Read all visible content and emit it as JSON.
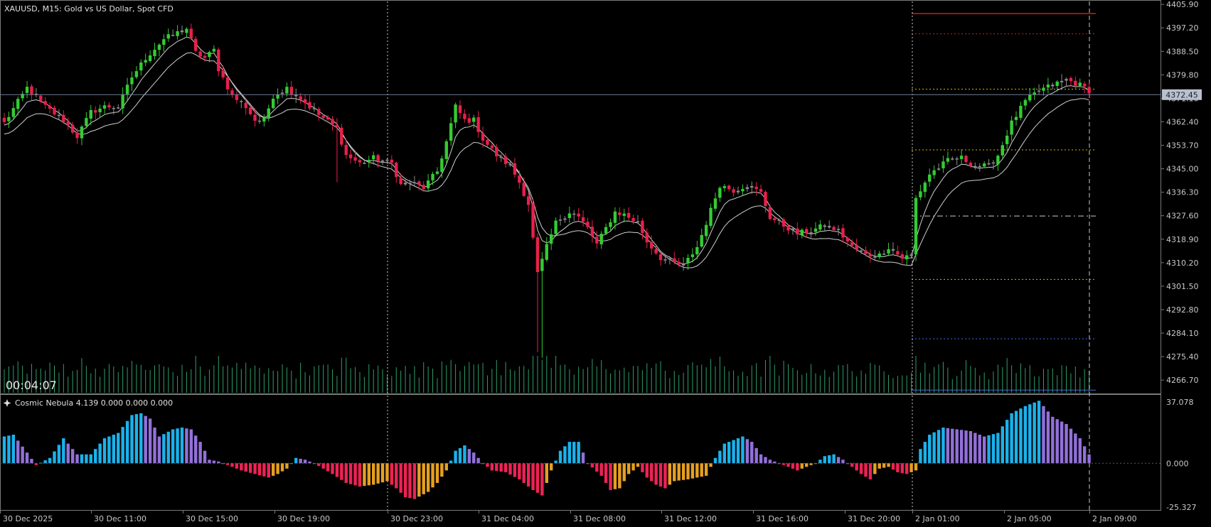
{
  "header": {
    "symbol_label": "XAUUSD, M15:  Gold vs US Dollar, Spot CFD"
  },
  "timer": "00:04:07",
  "indicator": {
    "label": "Cosmic Nebula 4.139 0.000 0.000 0.000",
    "icon": "sparkle-icon",
    "scale_ticks": [
      "37.078",
      "0.000",
      "-25.327"
    ],
    "top": 37.078,
    "bottom": -25.327,
    "colors": {
      "blue": "#1ab2ec",
      "purple": "#9370db",
      "red": "#ee2255",
      "orange": "#e6a020"
    }
  },
  "colors": {
    "bull": "#33cc33",
    "bear": "#e8204a",
    "doji": "#8c8c8c",
    "ma": "#cfcfcf",
    "volume": "#2e9e6a",
    "price_line": "#6f7d96",
    "price_label_bg": "#b9c1cf",
    "grid_vline": "#c8c8c8"
  },
  "chart_data": [
    {
      "type": "candlestick",
      "symbol": "XAUUSD",
      "timeframe": "M15",
      "ylim": [
        4262.0,
        4407.0
      ],
      "y_ticks": [
        "4405.90",
        "4397.20",
        "4388.50",
        "4379.80",
        "4371.10",
        "4362.40",
        "4353.70",
        "4345.00",
        "4336.30",
        "4327.60",
        "4318.90",
        "4310.20",
        "4301.50",
        "4292.80",
        "4284.10",
        "4275.40",
        "4266.70"
      ],
      "x_ticks": [
        "30 Dec 2025",
        "30 Dec 11:00",
        "30 Dec 15:00",
        "30 Dec 19:00",
        "30 Dec 23:00",
        "31 Dec 04:00",
        "31 Dec 08:00",
        "31 Dec 12:00",
        "31 Dec 16:00",
        "31 Dec 20:00",
        "2 Jan 01:00",
        "2 Jan 05:00",
        "2 Jan 09:00"
      ],
      "current_price": "4372.45",
      "session_lines": [
        "30 Dec 23:00",
        "2 Jan 01:00",
        "2 Jan 09:00"
      ],
      "anchors": [
        [
          0,
          4362
        ],
        [
          5,
          4375
        ],
        [
          9,
          4368
        ],
        [
          13,
          4363
        ],
        [
          16,
          4357
        ],
        [
          19,
          4366
        ],
        [
          22,
          4368
        ],
        [
          25,
          4368
        ],
        [
          28,
          4379
        ],
        [
          31,
          4386
        ],
        [
          35,
          4393
        ],
        [
          40,
          4397
        ],
        [
          42,
          4388
        ],
        [
          44,
          4386
        ],
        [
          46,
          4389
        ],
        [
          47,
          4382
        ],
        [
          50,
          4372
        ],
        [
          53,
          4368
        ],
        [
          55,
          4363
        ],
        [
          57,
          4363
        ],
        [
          59,
          4372
        ],
        [
          62,
          4375
        ],
        [
          65,
          4371
        ],
        [
          69,
          4365
        ],
        [
          73,
          4360
        ],
        [
          75,
          4350
        ],
        [
          78,
          4347
        ],
        [
          81,
          4349
        ],
        [
          85,
          4347
        ],
        [
          87,
          4339
        ],
        [
          89,
          4340
        ],
        [
          92,
          4338
        ],
        [
          95,
          4344
        ],
        [
          97,
          4355
        ],
        [
          99,
          4368
        ],
        [
          101,
          4363
        ],
        [
          103,
          4363
        ],
        [
          105,
          4356
        ],
        [
          108,
          4350
        ],
        [
          111,
          4346
        ],
        [
          113,
          4340
        ],
        [
          115,
          4332
        ],
        [
          117,
          4306
        ],
        [
          119,
          4316
        ],
        [
          121,
          4325
        ],
        [
          124,
          4329
        ],
        [
          126,
          4327
        ],
        [
          128,
          4323
        ],
        [
          130,
          4317
        ],
        [
          132,
          4323
        ],
        [
          134,
          4329
        ],
        [
          136,
          4328
        ],
        [
          139,
          4325
        ],
        [
          141,
          4318
        ],
        [
          144,
          4312
        ],
        [
          147,
          4310
        ],
        [
          149,
          4309
        ],
        [
          152,
          4316
        ],
        [
          154,
          4325
        ],
        [
          157,
          4339
        ],
        [
          160,
          4337
        ],
        [
          163,
          4339
        ],
        [
          166,
          4336
        ],
        [
          168,
          4327
        ],
        [
          171,
          4324
        ],
        [
          174,
          4321
        ],
        [
          177,
          4322
        ],
        [
          180,
          4324
        ],
        [
          183,
          4322
        ],
        [
          186,
          4316
        ],
        [
          189,
          4313
        ],
        [
          192,
          4313
        ],
        [
          194,
          4316
        ],
        [
          197,
          4312
        ],
        [
          199,
          4313
        ],
        [
          200,
          4334
        ],
        [
          203,
          4343
        ],
        [
          207,
          4348
        ],
        [
          210,
          4349
        ],
        [
          213,
          4346
        ],
        [
          216,
          4346
        ],
        [
          218,
          4350
        ],
        [
          221,
          4362
        ],
        [
          224,
          4370
        ],
        [
          227,
          4374
        ],
        [
          230,
          4376
        ],
        [
          233,
          4378
        ],
        [
          236,
          4376
        ],
        [
          238,
          4374
        ]
      ],
      "spike_wicks": [
        {
          "candle": 117,
          "low": 4277
        },
        {
          "candle": 118,
          "low": 4275
        },
        {
          "candle": 73,
          "low": 4340
        }
      ],
      "horizontal_levels": [
        {
          "price": 4402.5,
          "color": "#cc1d1d",
          "style": "solid",
          "width": 1.5
        },
        {
          "price": 4395.0,
          "color": "#cc1d1d",
          "style": "dotted",
          "width": 1
        },
        {
          "price": 4374.5,
          "color": "#d4b400",
          "style": "dotted",
          "width": 1
        },
        {
          "price": 4352.0,
          "color": "#d4b400",
          "style": "dotted",
          "width": 1
        },
        {
          "price": 4327.5,
          "color": "#c8c8c8",
          "style": "dashdot",
          "width": 1
        },
        {
          "price": 4304.0,
          "color": "#d4b400",
          "style": "dotted",
          "width": 1
        },
        {
          "price": 4282.0,
          "color": "#3a6ed8",
          "style": "dotted",
          "width": 1
        },
        {
          "price": 4263.0,
          "color": "#3a6ed8",
          "style": "solid",
          "width": 1
        }
      ]
    },
    {
      "type": "histogram",
      "name": "Cosmic Nebula 4.139",
      "ylim": [
        -25.327,
        37.078
      ],
      "y_ticks": [
        "37.078",
        "0.000",
        "-25.327"
      ],
      "anchors": [
        [
          0,
          15
        ],
        [
          2,
          16
        ],
        [
          5,
          6
        ],
        [
          7,
          -1
        ],
        [
          10,
          3
        ],
        [
          13,
          14
        ],
        [
          16,
          5
        ],
        [
          19,
          5
        ],
        [
          22,
          14
        ],
        [
          25,
          17
        ],
        [
          28,
          27
        ],
        [
          30,
          28
        ],
        [
          32,
          25
        ],
        [
          34,
          15
        ],
        [
          37,
          19
        ],
        [
          39,
          20
        ],
        [
          41,
          19
        ],
        [
          43,
          12
        ],
        [
          45,
          2
        ],
        [
          47,
          1
        ],
        [
          49,
          -1
        ],
        [
          52,
          -4
        ],
        [
          55,
          -6
        ],
        [
          58,
          -8
        ],
        [
          60,
          -6
        ],
        [
          62,
          -3
        ],
        [
          64,
          3
        ],
        [
          66,
          2
        ],
        [
          68,
          0
        ],
        [
          70,
          -3
        ],
        [
          72,
          -6
        ],
        [
          75,
          -11
        ],
        [
          78,
          -13
        ],
        [
          81,
          -12
        ],
        [
          84,
          -10
        ],
        [
          86,
          -14
        ],
        [
          88,
          -19
        ],
        [
          90,
          -20
        ],
        [
          93,
          -16
        ],
        [
          95,
          -11
        ],
        [
          97,
          -4
        ],
        [
          99,
          7
        ],
        [
          101,
          10
        ],
        [
          103,
          6
        ],
        [
          105,
          0
        ],
        [
          107,
          -4
        ],
        [
          110,
          -5
        ],
        [
          113,
          -9
        ],
        [
          116,
          -15
        ],
        [
          118,
          -18
        ],
        [
          120,
          -4
        ],
        [
          122,
          7
        ],
        [
          124,
          12
        ],
        [
          126,
          12
        ],
        [
          128,
          0
        ],
        [
          131,
          -7
        ],
        [
          133,
          -15
        ],
        [
          135,
          -14
        ],
        [
          137,
          -6
        ],
        [
          139,
          -2
        ],
        [
          141,
          -8
        ],
        [
          143,
          -12
        ],
        [
          145,
          -14
        ],
        [
          147,
          -10
        ],
        [
          150,
          -9
        ],
        [
          152,
          -8
        ],
        [
          154,
          -7
        ],
        [
          156,
          3
        ],
        [
          158,
          11
        ],
        [
          160,
          13
        ],
        [
          162,
          15
        ],
        [
          164,
          12
        ],
        [
          166,
          5
        ],
        [
          168,
          2
        ],
        [
          170,
          0
        ],
        [
          172,
          -2
        ],
        [
          174,
          -4
        ],
        [
          176,
          -2
        ],
        [
          178,
          0
        ],
        [
          180,
          4
        ],
        [
          182,
          5
        ],
        [
          184,
          2
        ],
        [
          186,
          -2
        ],
        [
          188,
          -6
        ],
        [
          190,
          -9
        ],
        [
          192,
          -3
        ],
        [
          194,
          -2
        ],
        [
          196,
          -5
        ],
        [
          198,
          -6
        ],
        [
          200,
          -4
        ],
        [
          201,
          8
        ],
        [
          203,
          16
        ],
        [
          206,
          20
        ],
        [
          209,
          19
        ],
        [
          212,
          18
        ],
        [
          215,
          15
        ],
        [
          218,
          17
        ],
        [
          221,
          28
        ],
        [
          224,
          32
        ],
        [
          227,
          35
        ],
        [
          230,
          26
        ],
        [
          233,
          22
        ],
        [
          236,
          14
        ],
        [
          238,
          5
        ]
      ]
    }
  ]
}
